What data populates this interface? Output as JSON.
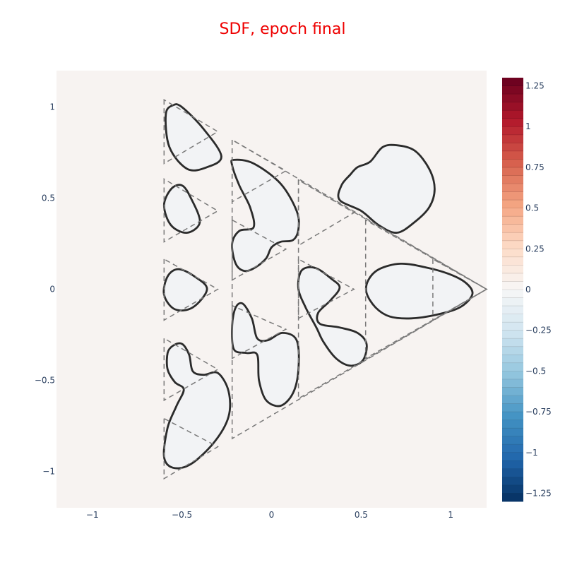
{
  "chart_data": {
    "type": "contour",
    "title": "SDF, epoch final",
    "title_color": "#ee0000",
    "plot_background": "#f7f3f1",
    "shape_fill": "#f2f3f5",
    "shape_stroke": "#2b2b2b",
    "guide_stroke": "#7a7a7a",
    "xlim": [
      -1.2,
      1.2
    ],
    "ylim": [
      -1.2,
      1.2
    ],
    "x_ticks": [
      {
        "value": -1,
        "label": "−1"
      },
      {
        "value": -0.5,
        "label": "−0.5"
      },
      {
        "value": 0,
        "label": "0"
      },
      {
        "value": 0.5,
        "label": "0.5"
      },
      {
        "value": 1,
        "label": "1"
      }
    ],
    "y_ticks": [
      {
        "value": 1,
        "label": "1"
      },
      {
        "value": 0.5,
        "label": "0.5"
      },
      {
        "value": 0,
        "label": "0"
      },
      {
        "value": -0.5,
        "label": "−0.5"
      },
      {
        "value": -1,
        "label": "−1"
      }
    ],
    "colorbar": {
      "range": [
        -1.3,
        1.3
      ],
      "ticks": [
        {
          "value": 1.25,
          "label": "1.25"
        },
        {
          "value": 1,
          "label": "1"
        },
        {
          "value": 0.75,
          "label": "0.75"
        },
        {
          "value": 0.5,
          "label": "0.5"
        },
        {
          "value": 0.25,
          "label": "0.25"
        },
        {
          "value": 0,
          "label": "0"
        },
        {
          "value": -0.25,
          "label": "−0.25"
        },
        {
          "value": -0.5,
          "label": "−0.5"
        },
        {
          "value": -0.75,
          "label": "−0.75"
        },
        {
          "value": -1,
          "label": "−1"
        },
        {
          "value": -1.25,
          "label": "−1.25"
        }
      ],
      "colorscale": [
        [
          0.0,
          "#053061"
        ],
        [
          0.1,
          "#2166ac"
        ],
        [
          0.2,
          "#4393c3"
        ],
        [
          0.3,
          "#92c5de"
        ],
        [
          0.4,
          "#d1e5f0"
        ],
        [
          0.5,
          "#f7f7f7"
        ],
        [
          0.6,
          "#fddbc7"
        ],
        [
          0.7,
          "#f4a582"
        ],
        [
          0.8,
          "#d6604d"
        ],
        [
          0.9,
          "#b2182b"
        ],
        [
          1.0,
          "#67001f"
        ]
      ]
    },
    "guide_triangles": [
      [
        [
          -0.6,
          1.04
        ],
        [
          -0.6,
          0.69
        ],
        [
          -0.3,
          0.865
        ]
      ],
      [
        [
          -0.6,
          0.605
        ],
        [
          -0.6,
          0.26
        ],
        [
          -0.3,
          0.43
        ]
      ],
      [
        [
          -0.6,
          0.165
        ],
        [
          -0.6,
          -0.17
        ],
        [
          -0.3,
          0.0
        ]
      ],
      [
        [
          -0.6,
          -0.27
        ],
        [
          -0.6,
          -0.61
        ],
        [
          -0.3,
          -0.44
        ]
      ],
      [
        [
          -0.6,
          -0.71
        ],
        [
          -0.6,
          -1.04
        ],
        [
          -0.3,
          -0.865
        ]
      ],
      [
        [
          -0.22,
          0.82
        ],
        [
          -0.22,
          0.48
        ],
        [
          0.08,
          0.65
        ]
      ],
      [
        [
          -0.22,
          0.38
        ],
        [
          -0.22,
          0.05
        ],
        [
          0.08,
          0.22
        ]
      ],
      [
        [
          -0.22,
          -0.09
        ],
        [
          -0.22,
          -0.38
        ],
        [
          0.08,
          -0.22
        ]
      ],
      [
        [
          0.15,
          0.6
        ],
        [
          0.15,
          0.24
        ],
        [
          0.46,
          0.42
        ]
      ],
      [
        [
          0.15,
          0.165
        ],
        [
          0.15,
          -0.16
        ],
        [
          0.46,
          0.0
        ]
      ],
      [
        [
          0.9,
          0.165
        ],
        [
          0.9,
          -0.17
        ],
        [
          1.2,
          0.0
        ]
      ],
      [
        [
          -0.22,
          0.82
        ],
        [
          -0.22,
          -0.82
        ],
        [
          1.2,
          0.0
        ]
      ],
      [
        [
          0.15,
          0.6
        ],
        [
          0.15,
          -0.6
        ],
        [
          1.2,
          0.0
        ]
      ],
      [
        [
          0.525,
          0.38
        ],
        [
          0.525,
          -0.38
        ],
        [
          1.2,
          0.0
        ]
      ]
    ],
    "shapes": [
      [
        [
          -0.5,
          1.0
        ],
        [
          -0.38,
          0.88
        ],
        [
          -0.28,
          0.73
        ],
        [
          -0.36,
          0.67
        ],
        [
          -0.47,
          0.66
        ],
        [
          -0.57,
          0.78
        ],
        [
          -0.59,
          0.96
        ],
        [
          -0.55,
          1.01
        ]
      ],
      [
        [
          -0.5,
          0.57
        ],
        [
          -0.45,
          0.5
        ],
        [
          -0.4,
          0.37
        ],
        [
          -0.47,
          0.31
        ],
        [
          -0.56,
          0.35
        ],
        [
          -0.6,
          0.46
        ],
        [
          -0.56,
          0.55
        ]
      ],
      [
        [
          -0.52,
          0.11
        ],
        [
          -0.43,
          0.07
        ],
        [
          -0.36,
          0.0
        ],
        [
          -0.44,
          -0.1
        ],
        [
          -0.54,
          -0.11
        ],
        [
          -0.6,
          -0.03
        ],
        [
          -0.58,
          0.07
        ]
      ],
      [
        [
          -0.5,
          -0.3
        ],
        [
          -0.46,
          -0.36
        ],
        [
          -0.44,
          -0.45
        ],
        [
          -0.38,
          -0.47
        ],
        [
          -0.3,
          -0.46
        ],
        [
          -0.24,
          -0.56
        ],
        [
          -0.24,
          -0.7
        ],
        [
          -0.32,
          -0.84
        ],
        [
          -0.45,
          -0.96
        ],
        [
          -0.55,
          -0.98
        ],
        [
          -0.6,
          -0.92
        ],
        [
          -0.58,
          -0.76
        ],
        [
          -0.53,
          -0.64
        ],
        [
          -0.49,
          -0.55
        ],
        [
          -0.54,
          -0.51
        ],
        [
          -0.58,
          -0.44
        ],
        [
          -0.58,
          -0.35
        ],
        [
          -0.55,
          -0.31
        ]
      ],
      [
        [
          -0.21,
          0.71
        ],
        [
          -0.1,
          0.69
        ],
        [
          0.05,
          0.58
        ],
        [
          0.14,
          0.43
        ],
        [
          0.15,
          0.33
        ],
        [
          0.12,
          0.27
        ],
        [
          0.05,
          0.26
        ],
        [
          0.0,
          0.23
        ],
        [
          -0.03,
          0.17
        ],
        [
          -0.09,
          0.12
        ],
        [
          -0.15,
          0.1
        ],
        [
          -0.2,
          0.14
        ],
        [
          -0.22,
          0.25
        ],
        [
          -0.18,
          0.32
        ],
        [
          -0.1,
          0.34
        ],
        [
          -0.12,
          0.45
        ],
        [
          -0.18,
          0.57
        ],
        [
          -0.22,
          0.68
        ]
      ],
      [
        [
          -0.16,
          -0.08
        ],
        [
          -0.11,
          -0.16
        ],
        [
          -0.08,
          -0.27
        ],
        [
          -0.02,
          -0.28
        ],
        [
          0.06,
          -0.24
        ],
        [
          0.14,
          -0.28
        ],
        [
          0.15,
          -0.44
        ],
        [
          0.12,
          -0.57
        ],
        [
          0.05,
          -0.64
        ],
        [
          -0.03,
          -0.61
        ],
        [
          -0.07,
          -0.5
        ],
        [
          -0.08,
          -0.36
        ],
        [
          -0.14,
          -0.35
        ],
        [
          -0.21,
          -0.33
        ],
        [
          -0.22,
          -0.2
        ],
        [
          -0.2,
          -0.1
        ]
      ],
      [
        [
          0.2,
          0.12
        ],
        [
          0.26,
          0.11
        ],
        [
          0.33,
          0.06
        ],
        [
          0.38,
          0.01
        ],
        [
          0.33,
          -0.06
        ],
        [
          0.26,
          -0.13
        ],
        [
          0.27,
          -0.19
        ],
        [
          0.38,
          -0.21
        ],
        [
          0.48,
          -0.24
        ],
        [
          0.53,
          -0.3
        ],
        [
          0.51,
          -0.39
        ],
        [
          0.44,
          -0.42
        ],
        [
          0.36,
          -0.38
        ],
        [
          0.29,
          -0.29
        ],
        [
          0.25,
          -0.21
        ],
        [
          0.19,
          -0.1
        ],
        [
          0.15,
          0.0
        ],
        [
          0.16,
          0.09
        ]
      ],
      [
        [
          0.55,
          0.7
        ],
        [
          0.62,
          0.78
        ],
        [
          0.7,
          0.79
        ],
        [
          0.8,
          0.76
        ],
        [
          0.88,
          0.66
        ],
        [
          0.91,
          0.55
        ],
        [
          0.88,
          0.45
        ],
        [
          0.8,
          0.37
        ],
        [
          0.7,
          0.31
        ],
        [
          0.6,
          0.35
        ],
        [
          0.5,
          0.43
        ],
        [
          0.38,
          0.49
        ],
        [
          0.39,
          0.57
        ],
        [
          0.44,
          0.63
        ],
        [
          0.48,
          0.67
        ]
      ],
      [
        [
          0.6,
          0.11
        ],
        [
          0.72,
          0.14
        ],
        [
          0.86,
          0.12
        ],
        [
          1.0,
          0.08
        ],
        [
          1.09,
          0.03
        ],
        [
          1.12,
          -0.03
        ],
        [
          1.05,
          -0.1
        ],
        [
          0.92,
          -0.14
        ],
        [
          0.78,
          -0.16
        ],
        [
          0.66,
          -0.15
        ],
        [
          0.58,
          -0.1
        ],
        [
          0.53,
          -0.02
        ],
        [
          0.54,
          0.05
        ]
      ]
    ]
  }
}
